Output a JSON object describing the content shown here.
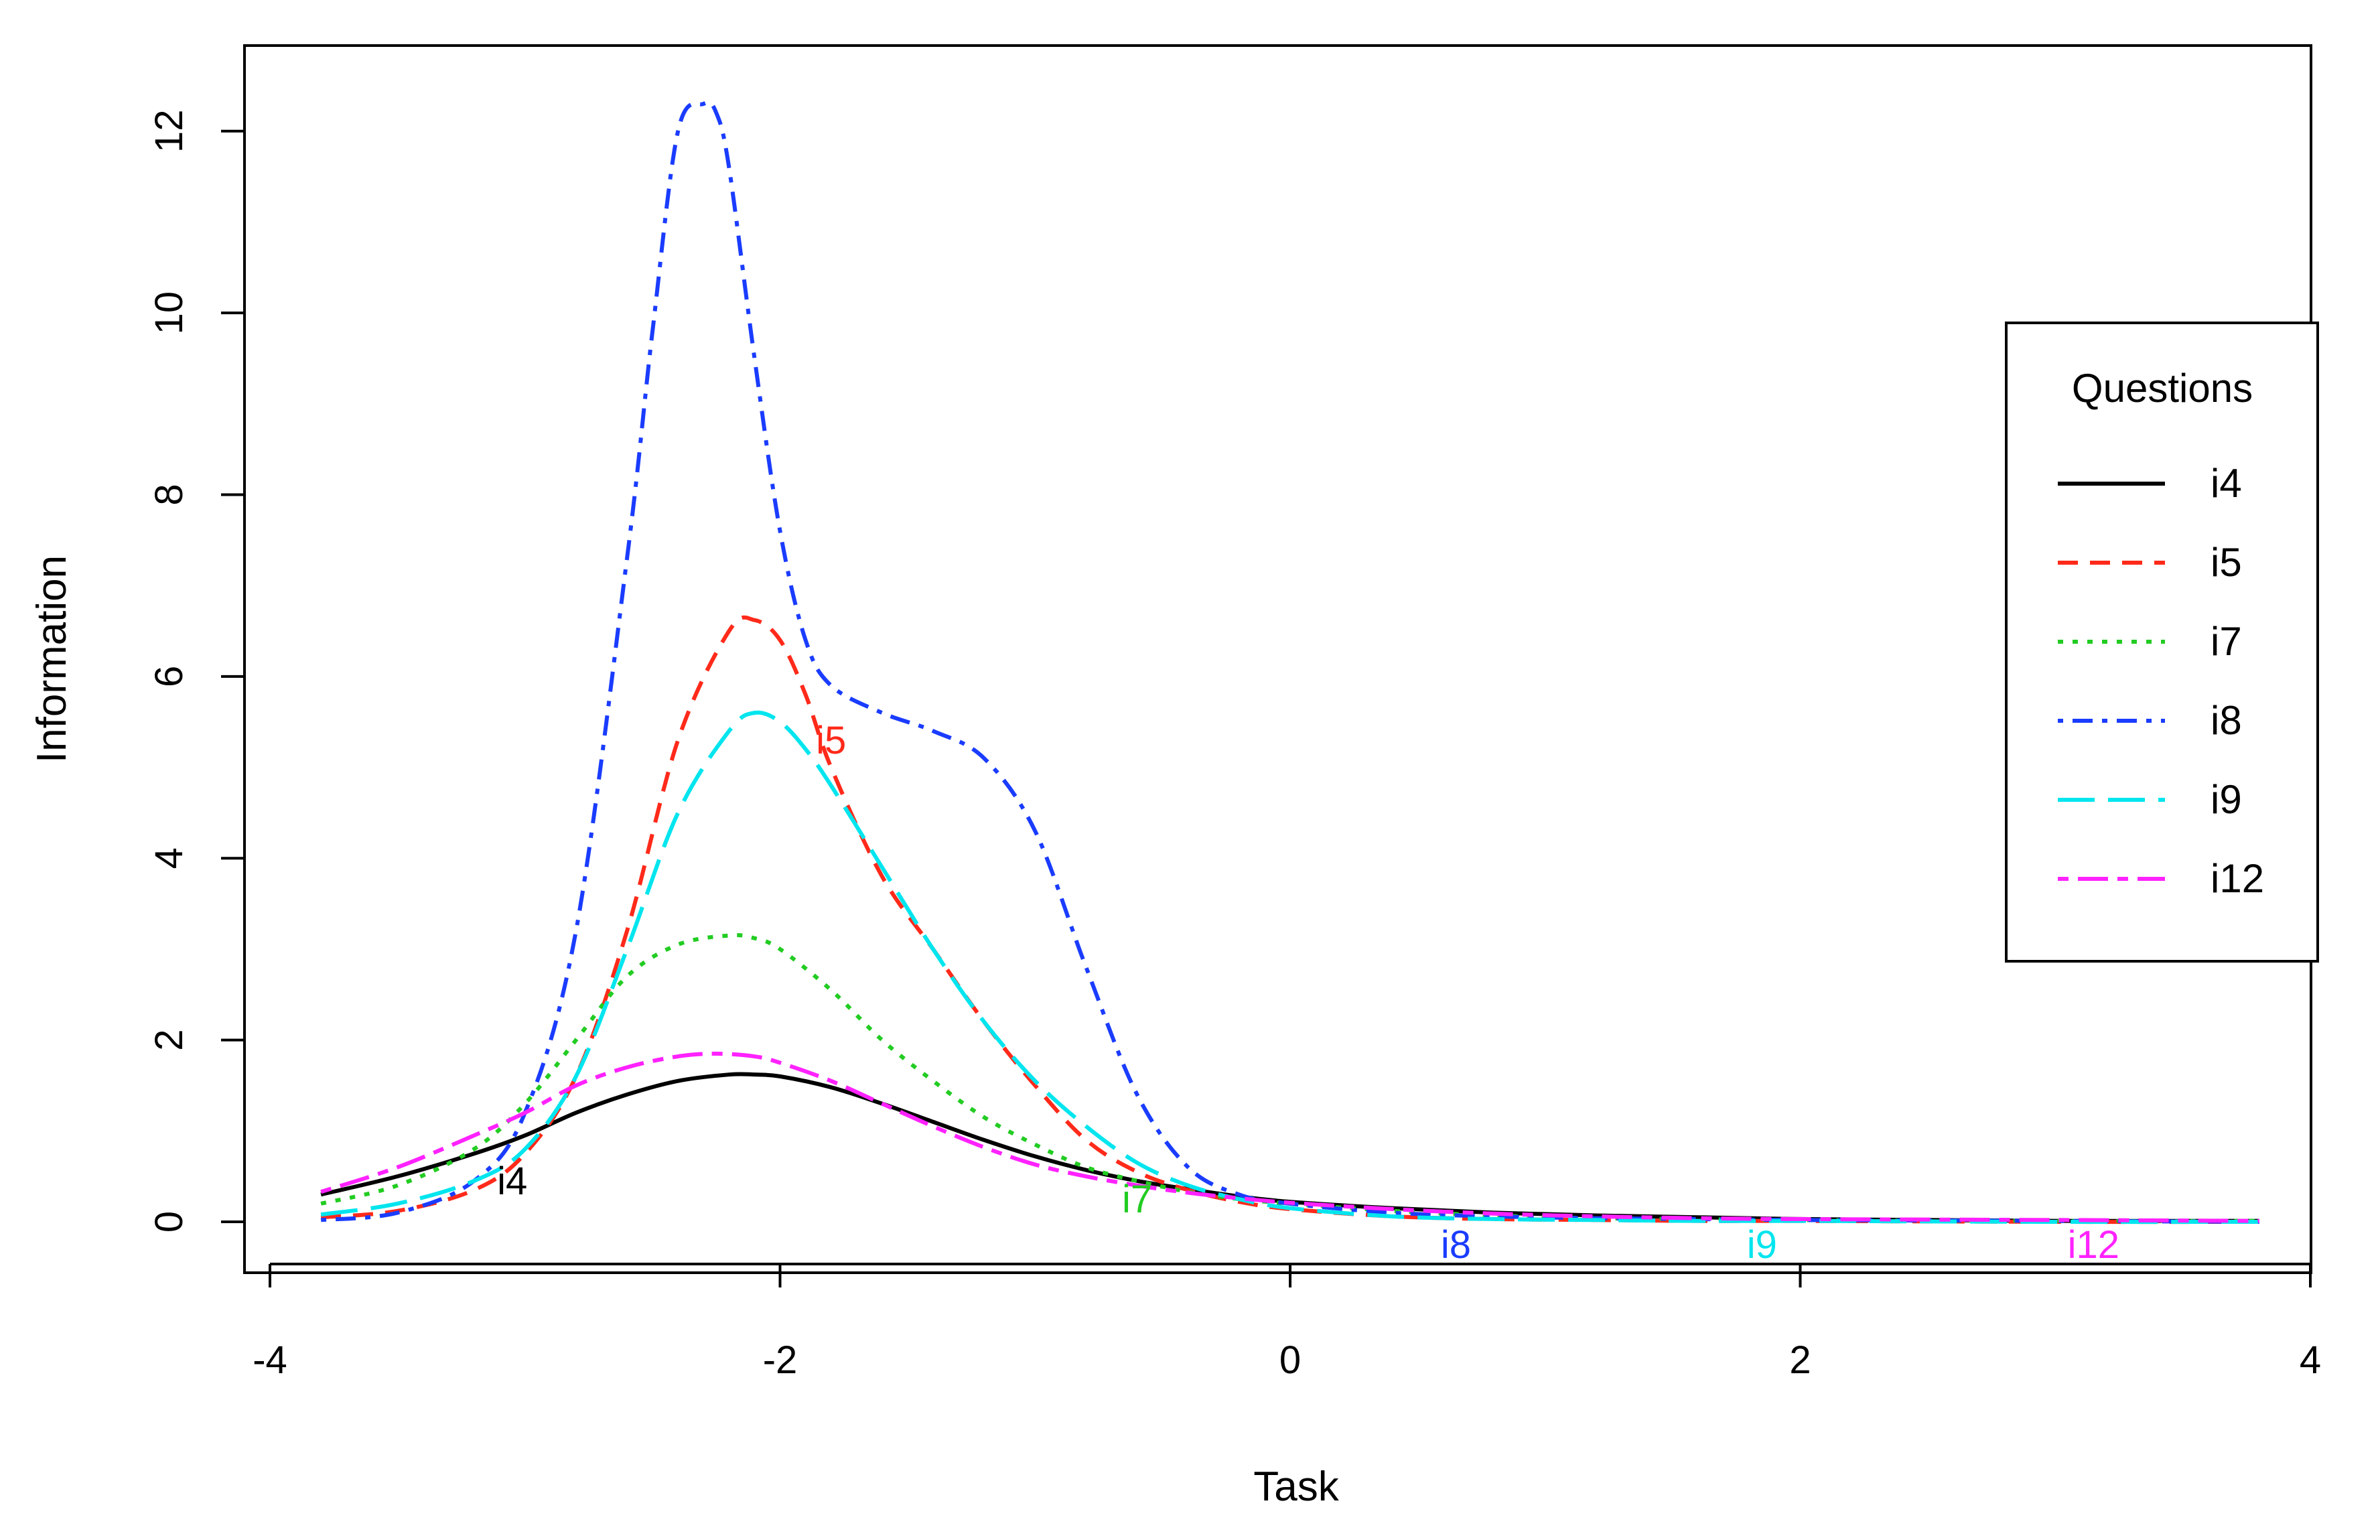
{
  "chart_data": {
    "type": "line",
    "title": "",
    "xlabel": "Task",
    "ylabel": "Information",
    "xlim": [
      -4,
      4
    ],
    "ylim": [
      0,
      12.3
    ],
    "xticks": [
      -4,
      -2,
      0,
      2,
      4
    ],
    "yticks": [
      0,
      2,
      4,
      6,
      8,
      10,
      12
    ],
    "xtick_labels": [
      "-4",
      "-2",
      "0",
      "2",
      "4"
    ],
    "ytick_labels": [
      "0",
      "2",
      "4",
      "6",
      "8",
      "10",
      "12"
    ],
    "grid": false,
    "legend": {
      "title": "Questions",
      "placement": "right",
      "entries": [
        "i4",
        "i5",
        "i7",
        "i8",
        "i9",
        "i12"
      ]
    },
    "series": [
      {
        "name": "i4",
        "color": "#000000",
        "dash": "solid",
        "x": [
          -3.8,
          -3.5,
          -3.2,
          -3.0,
          -2.8,
          -2.6,
          -2.4,
          -2.2,
          -2.1,
          -2.0,
          -1.8,
          -1.6,
          -1.4,
          -1.2,
          -1.0,
          -0.8,
          -0.6,
          -0.4,
          -0.2,
          0.0,
          0.4,
          0.8,
          1.2,
          1.6,
          2.0,
          2.5,
          3.0,
          3.8
        ],
        "y": [
          0.3,
          0.5,
          0.75,
          0.95,
          1.2,
          1.4,
          1.55,
          1.62,
          1.62,
          1.6,
          1.48,
          1.3,
          1.1,
          0.9,
          0.72,
          0.57,
          0.45,
          0.36,
          0.28,
          0.22,
          0.15,
          0.1,
          0.07,
          0.05,
          0.03,
          0.02,
          0.01,
          0.01
        ],
        "label": {
          "text": "i4",
          "x": -3.05,
          "y": 0.45
        }
      },
      {
        "name": "i5",
        "color": "#ff2a1a",
        "dash": "dashed",
        "x": [
          -3.8,
          -3.5,
          -3.2,
          -3.0,
          -2.8,
          -2.6,
          -2.4,
          -2.2,
          -2.1,
          -2.0,
          -1.9,
          -1.8,
          -1.6,
          -1.4,
          -1.2,
          -1.0,
          -0.8,
          -0.6,
          -0.4,
          -0.2,
          0.0,
          0.4,
          0.8,
          1.2,
          1.6,
          2.0,
          3.0,
          3.8
        ],
        "y": [
          0.05,
          0.12,
          0.35,
          0.75,
          1.6,
          3.2,
          5.3,
          6.5,
          6.62,
          6.4,
          5.8,
          5.0,
          3.8,
          3.0,
          2.2,
          1.5,
          0.9,
          0.55,
          0.35,
          0.22,
          0.14,
          0.06,
          0.03,
          0.02,
          0.01,
          0.01,
          0.0,
          0.0
        ],
        "label": {
          "text": "i5",
          "x": -1.8,
          "y": 5.3
        }
      },
      {
        "name": "i7",
        "color": "#22cc22",
        "dash": "dotted",
        "x": [
          -3.8,
          -3.5,
          -3.2,
          -3.0,
          -2.8,
          -2.6,
          -2.4,
          -2.2,
          -2.1,
          -2.0,
          -1.8,
          -1.6,
          -1.4,
          -1.2,
          -1.0,
          -0.8,
          -0.6,
          -0.4,
          -0.2,
          0.0,
          0.4,
          0.8,
          1.2,
          1.6,
          2.0,
          3.0,
          3.8
        ],
        "y": [
          0.2,
          0.4,
          0.8,
          1.3,
          2.0,
          2.7,
          3.05,
          3.15,
          3.12,
          3.0,
          2.55,
          2.0,
          1.55,
          1.15,
          0.85,
          0.6,
          0.45,
          0.33,
          0.25,
          0.2,
          0.12,
          0.07,
          0.04,
          0.03,
          0.02,
          0.01,
          0.01
        ],
        "label": {
          "text": "i7",
          "x": -0.6,
          "y": 0.25
        }
      },
      {
        "name": "i8",
        "color": "#1a3cff",
        "dash": "dotdash",
        "x": [
          -3.8,
          -3.5,
          -3.2,
          -3.0,
          -2.8,
          -2.6,
          -2.5,
          -2.4,
          -2.3,
          -2.25,
          -2.2,
          -2.1,
          -2.0,
          -1.9,
          -1.8,
          -1.6,
          -1.4,
          -1.2,
          -1.0,
          -0.8,
          -0.6,
          -0.4,
          -0.2,
          0.0,
          0.4,
          0.8,
          1.2,
          1.6,
          2.0,
          3.0,
          3.8
        ],
        "y": [
          0.02,
          0.1,
          0.45,
          1.2,
          3.2,
          7.3,
          9.8,
          12.0,
          12.3,
          12.2,
          11.6,
          9.5,
          7.6,
          6.4,
          5.9,
          5.6,
          5.4,
          5.1,
          4.3,
          2.8,
          1.4,
          0.6,
          0.3,
          0.2,
          0.1,
          0.06,
          0.04,
          0.03,
          0.02,
          0.01,
          0.0
        ],
        "label": {
          "text": "i8",
          "x": 0.65,
          "y": -0.25
        }
      },
      {
        "name": "i9",
        "color": "#00e5ee",
        "dash": "longdash",
        "x": [
          -3.8,
          -3.5,
          -3.2,
          -3.0,
          -2.8,
          -2.6,
          -2.4,
          -2.2,
          -2.1,
          -2.0,
          -1.9,
          -1.8,
          -1.6,
          -1.4,
          -1.2,
          -1.0,
          -0.8,
          -0.6,
          -0.4,
          -0.2,
          0.0,
          0.4,
          0.8,
          1.2,
          1.6,
          2.0,
          3.0,
          3.8
        ],
        "y": [
          0.08,
          0.2,
          0.45,
          0.8,
          1.6,
          3.0,
          4.5,
          5.4,
          5.6,
          5.5,
          5.2,
          4.8,
          3.9,
          3.0,
          2.2,
          1.55,
          1.05,
          0.65,
          0.4,
          0.25,
          0.15,
          0.06,
          0.03,
          0.02,
          0.01,
          0.01,
          0.0,
          0.0
        ],
        "label": {
          "text": "i9",
          "x": 1.85,
          "y": -0.25
        }
      },
      {
        "name": "i12",
        "color": "#ff22ff",
        "dash": "twodash",
        "x": [
          -3.8,
          -3.5,
          -3.2,
          -3.0,
          -2.8,
          -2.6,
          -2.4,
          -2.25,
          -2.1,
          -2.0,
          -1.8,
          -1.6,
          -1.4,
          -1.2,
          -1.0,
          -0.8,
          -0.6,
          -0.4,
          -0.2,
          0.0,
          0.4,
          0.8,
          1.2,
          1.6,
          2.0,
          3.0,
          3.8
        ],
        "y": [
          0.33,
          0.6,
          0.95,
          1.2,
          1.5,
          1.7,
          1.82,
          1.85,
          1.82,
          1.75,
          1.55,
          1.3,
          1.05,
          0.82,
          0.63,
          0.5,
          0.4,
          0.32,
          0.26,
          0.21,
          0.14,
          0.09,
          0.06,
          0.04,
          0.03,
          0.02,
          0.01
        ],
        "label": {
          "text": "i12",
          "x": 3.15,
          "y": -0.25
        }
      }
    ]
  }
}
